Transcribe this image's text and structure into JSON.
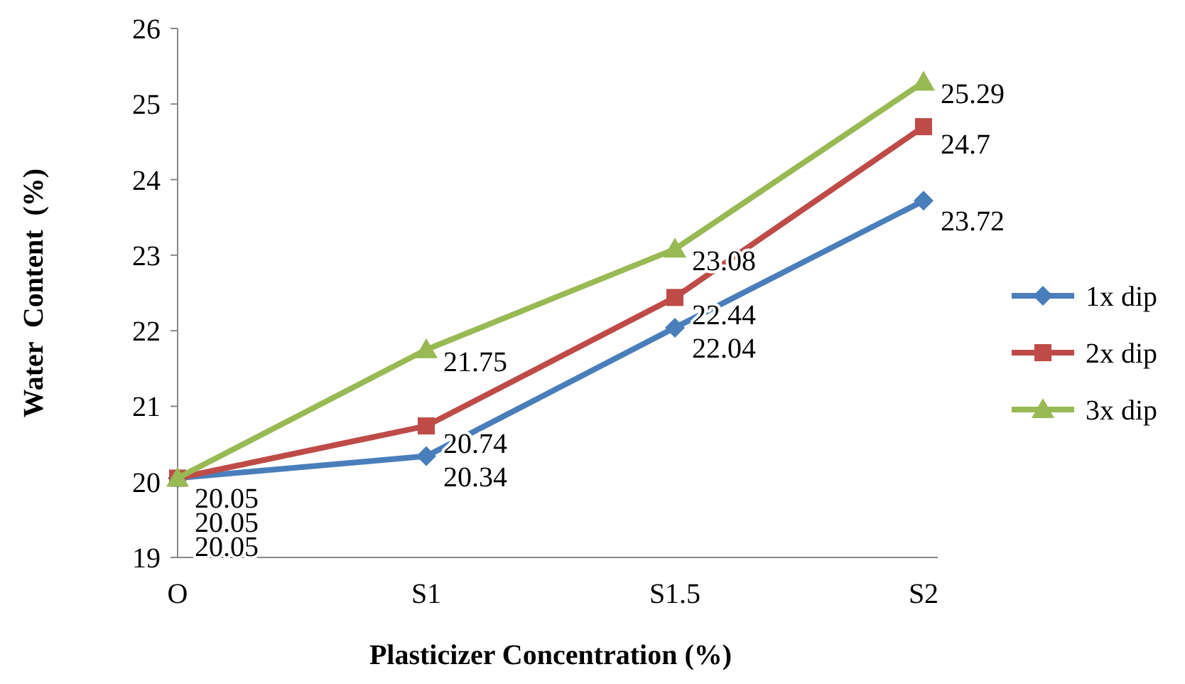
{
  "chart_data": {
    "type": "line",
    "xlabel": "Plasticizer Concentration (%)",
    "ylabel": "Water  Content  (%)",
    "categories": [
      "O",
      "S1",
      "S1.5",
      "S2"
    ],
    "series": [
      {
        "name": "1x dip",
        "color": "#4a7ebb",
        "marker": "diamond",
        "values": [
          20.05,
          20.34,
          22.04,
          23.72
        ]
      },
      {
        "name": "2x dip",
        "color": "#be4b48",
        "marker": "square",
        "values": [
          20.05,
          20.74,
          22.44,
          24.7
        ]
      },
      {
        "name": "3x dip",
        "color": "#98b954",
        "marker": "triangle",
        "values": [
          20.05,
          21.75,
          23.08,
          25.29
        ]
      }
    ],
    "ylim": [
      19,
      26
    ],
    "yticks": [
      19,
      20,
      21,
      22,
      23,
      24,
      25,
      26
    ],
    "grid": false,
    "legend": "right",
    "data_labels": true,
    "line_style": "solid"
  }
}
